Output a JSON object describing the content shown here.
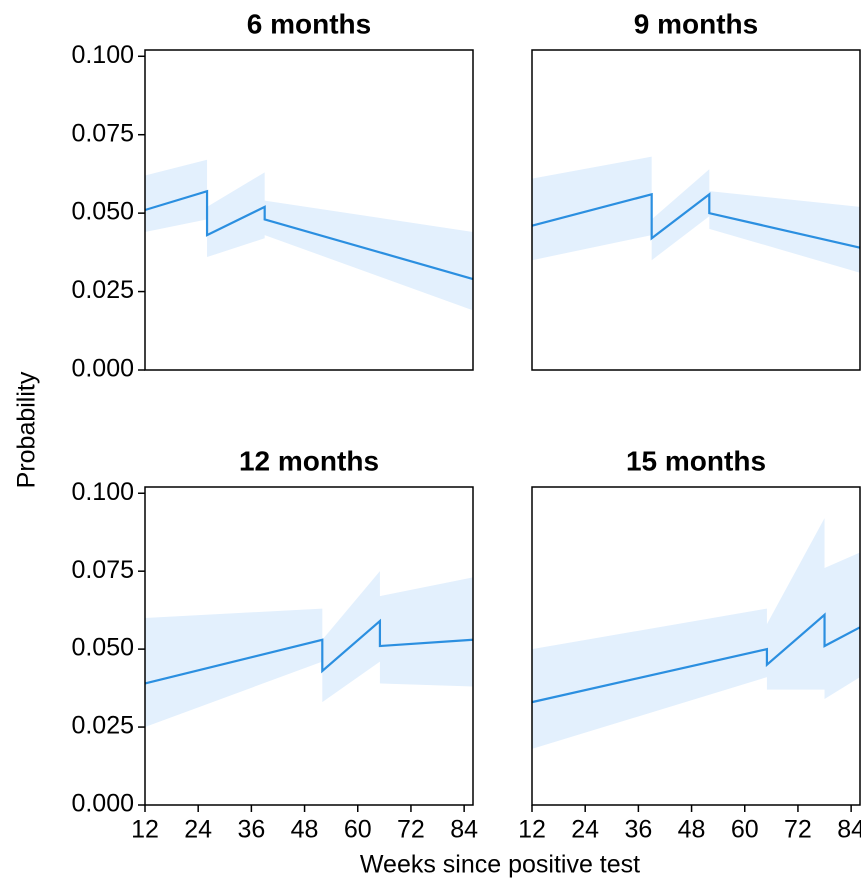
{
  "x_label": "Weeks since positive test",
  "y_label": "Probability",
  "chart_data": [
    {
      "type": "line",
      "title": "6 months",
      "color": "#2b8fe0",
      "band_color": "#e3f0fd",
      "x": [
        12,
        26,
        26,
        39,
        39,
        86
      ],
      "values": [
        0.051,
        0.057,
        0.043,
        0.052,
        0.048,
        0.029
      ],
      "lower": [
        0.044,
        0.048,
        0.036,
        0.042,
        0.043,
        0.019
      ],
      "upper": [
        0.062,
        0.067,
        0.052,
        0.063,
        0.054,
        0.044
      ],
      "xlim": [
        12,
        86
      ],
      "ylim": [
        0,
        0.102
      ],
      "yticks": [
        {
          "value": 0,
          "label": "0.000"
        },
        {
          "value": 0.025,
          "label": "0.025"
        },
        {
          "value": 0.05,
          "label": "0.050"
        },
        {
          "value": 0.075,
          "label": "0.075"
        },
        {
          "value": 0.1,
          "label": "0.100"
        }
      ]
    },
    {
      "type": "line",
      "title": "9 months",
      "color": "#2b8fe0",
      "band_color": "#e3f0fd",
      "x": [
        12,
        39,
        39,
        52,
        52,
        86
      ],
      "values": [
        0.046,
        0.056,
        0.042,
        0.056,
        0.05,
        0.039
      ],
      "lower": [
        0.035,
        0.043,
        0.035,
        0.049,
        0.045,
        0.031
      ],
      "upper": [
        0.061,
        0.068,
        0.048,
        0.064,
        0.057,
        0.052
      ],
      "xlim": [
        12,
        86
      ],
      "ylim": [
        0,
        0.102
      ]
    },
    {
      "type": "line",
      "title": "12 months",
      "color": "#2b8fe0",
      "band_color": "#e3f0fd",
      "x": [
        12,
        52,
        52,
        65,
        65,
        86
      ],
      "values": [
        0.039,
        0.053,
        0.043,
        0.059,
        0.051,
        0.053
      ],
      "lower": [
        0.025,
        0.046,
        0.033,
        0.046,
        0.039,
        0.038
      ],
      "upper": [
        0.06,
        0.063,
        0.053,
        0.075,
        0.067,
        0.073
      ],
      "xlim": [
        12,
        86
      ],
      "ylim": [
        0,
        0.102
      ],
      "xticks": [
        12,
        24,
        36,
        48,
        60,
        72,
        84
      ],
      "yticks": [
        {
          "value": 0,
          "label": "0.000"
        },
        {
          "value": 0.025,
          "label": "0.025"
        },
        {
          "value": 0.05,
          "label": "0.050"
        },
        {
          "value": 0.075,
          "label": "0.075"
        },
        {
          "value": 0.1,
          "label": "0.100"
        }
      ]
    },
    {
      "type": "line",
      "title": "15 months",
      "color": "#2b8fe0",
      "band_color": "#e3f0fd",
      "x": [
        12,
        65,
        65,
        78,
        78,
        86
      ],
      "values": [
        0.033,
        0.05,
        0.045,
        0.061,
        0.051,
        0.057
      ],
      "lower": [
        0.018,
        0.041,
        0.037,
        0.037,
        0.034,
        0.041
      ],
      "upper": [
        0.05,
        0.063,
        0.058,
        0.092,
        0.076,
        0.081
      ],
      "xlim": [
        12,
        86
      ],
      "ylim": [
        0,
        0.102
      ],
      "xticks": [
        12,
        24,
        36,
        48,
        60,
        72,
        84
      ]
    }
  ]
}
